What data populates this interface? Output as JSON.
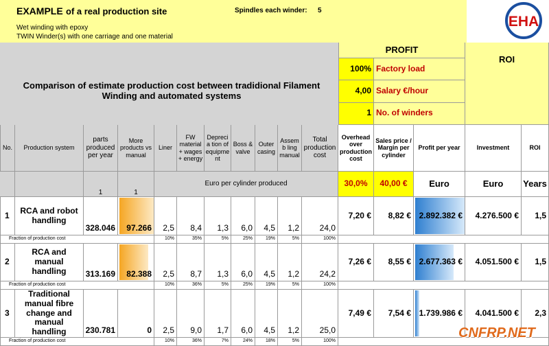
{
  "header": {
    "title": "EXAMPLE",
    "title_rest": "of a real production site",
    "spindles_label": "Spindles each winder:",
    "spindles_value": "5",
    "line1": "Wet winding with epoxy",
    "line2": "TWIN Winder(s) with one carriage and one material",
    "logo": "EHA"
  },
  "comparison": "Comparison of estimate production cost between tradidional Filament Winding and automated systems",
  "profit": {
    "title": "PROFIT",
    "params": [
      {
        "value": "100%",
        "label": "Factory load"
      },
      {
        "value": "4,00",
        "label": "Salary €/hour"
      },
      {
        "value": "1",
        "label": "No. of winders"
      }
    ]
  },
  "roi_title": "ROI",
  "columns": [
    "No.",
    "Production system",
    "parts produced per year",
    "More products vs manual",
    "Liner",
    "FW material + wages + energy",
    "Deprecia tion of equipme nt",
    "Boss & valve",
    "Outer casing",
    "Assemb ling manual",
    "Total production cost",
    "Overhead over production cost",
    "Sales price / Margin per cylinder",
    "Profit per year",
    "Investment",
    "ROI"
  ],
  "units": {
    "parts": "1",
    "more": "1",
    "cost": "Euro per cylinder produced",
    "overhead": "30,0%",
    "sales": "40,00 €",
    "profit": "Euro",
    "investment": "Euro",
    "roi": "Years"
  },
  "rows": [
    {
      "cells": [
        "1",
        "RCA and robot handling",
        "328.046",
        "97.266",
        "2,5",
        "8,4",
        "1,3",
        "6,0",
        "4,5",
        "1,2",
        "24,0",
        "7,20 €",
        "8,82 €",
        "2.892.382 €",
        "4.276.500 €",
        "1,5"
      ],
      "fraction_label": "Fraction of production cost",
      "fractions": [
        "10%",
        "35%",
        "5%",
        "25%",
        "19%",
        "5%",
        "100%"
      ]
    },
    {
      "cells": [
        "2",
        "RCA and manual handling",
        "313.169",
        "82.388",
        "2,5",
        "8,7",
        "1,3",
        "6,0",
        "4,5",
        "1,2",
        "24,2",
        "7,26 €",
        "8,55 €",
        "2.677.363 €",
        "4.051.500 €",
        "1,5"
      ],
      "fraction_label": "Fraction of production cost",
      "fractions": [
        "10%",
        "36%",
        "5%",
        "25%",
        "19%",
        "5%",
        "100%"
      ]
    },
    {
      "cells": [
        "3",
        "Traditional manual fibre change and manual handling",
        "230.781",
        "0",
        "2,5",
        "9,0",
        "1,7",
        "6,0",
        "4,5",
        "1,2",
        "25,0",
        "7,49 €",
        "7,54 €",
        "1.739.986 €",
        "4.041.500 €",
        "2,3"
      ],
      "fraction_label": "Fraction of production cost",
      "fractions": [
        "10%",
        "36%",
        "7%",
        "24%",
        "18%",
        "5%",
        "100%"
      ]
    }
  ],
  "watermark": "CNFRP.NET"
}
